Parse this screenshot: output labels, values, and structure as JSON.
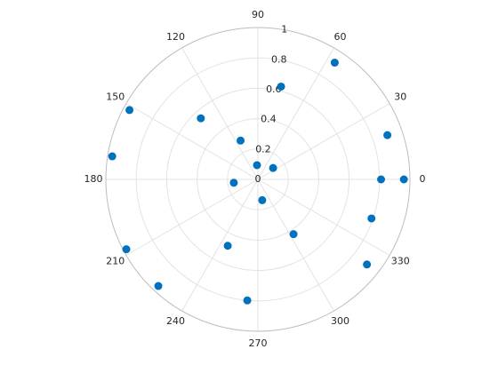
{
  "chart_data": {
    "type": "polar",
    "theta": [
      56.7,
      76,
      18.9,
      0,
      0,
      37,
      93.6,
      114,
      133,
      151.6,
      171,
      188,
      208,
      227,
      245.6,
      265,
      281.8,
      303,
      322,
      341
    ],
    "r": [
      0.92,
      0.63,
      0.9,
      0.96,
      0.81,
      0.125,
      0.094,
      0.28,
      0.55,
      0.96,
      0.97,
      0.16,
      0.98,
      0.96,
      0.48,
      0.8,
      0.14,
      0.43,
      0.91,
      0.79
    ],
    "color": "#0072bd",
    "rlim": [
      0,
      1
    ],
    "rticks": [
      0,
      0.2,
      0.4,
      0.6,
      0.8,
      1
    ],
    "thetaticks": [
      0,
      30,
      60,
      90,
      120,
      150,
      180,
      210,
      240,
      270,
      300,
      330
    ],
    "grid": true
  }
}
